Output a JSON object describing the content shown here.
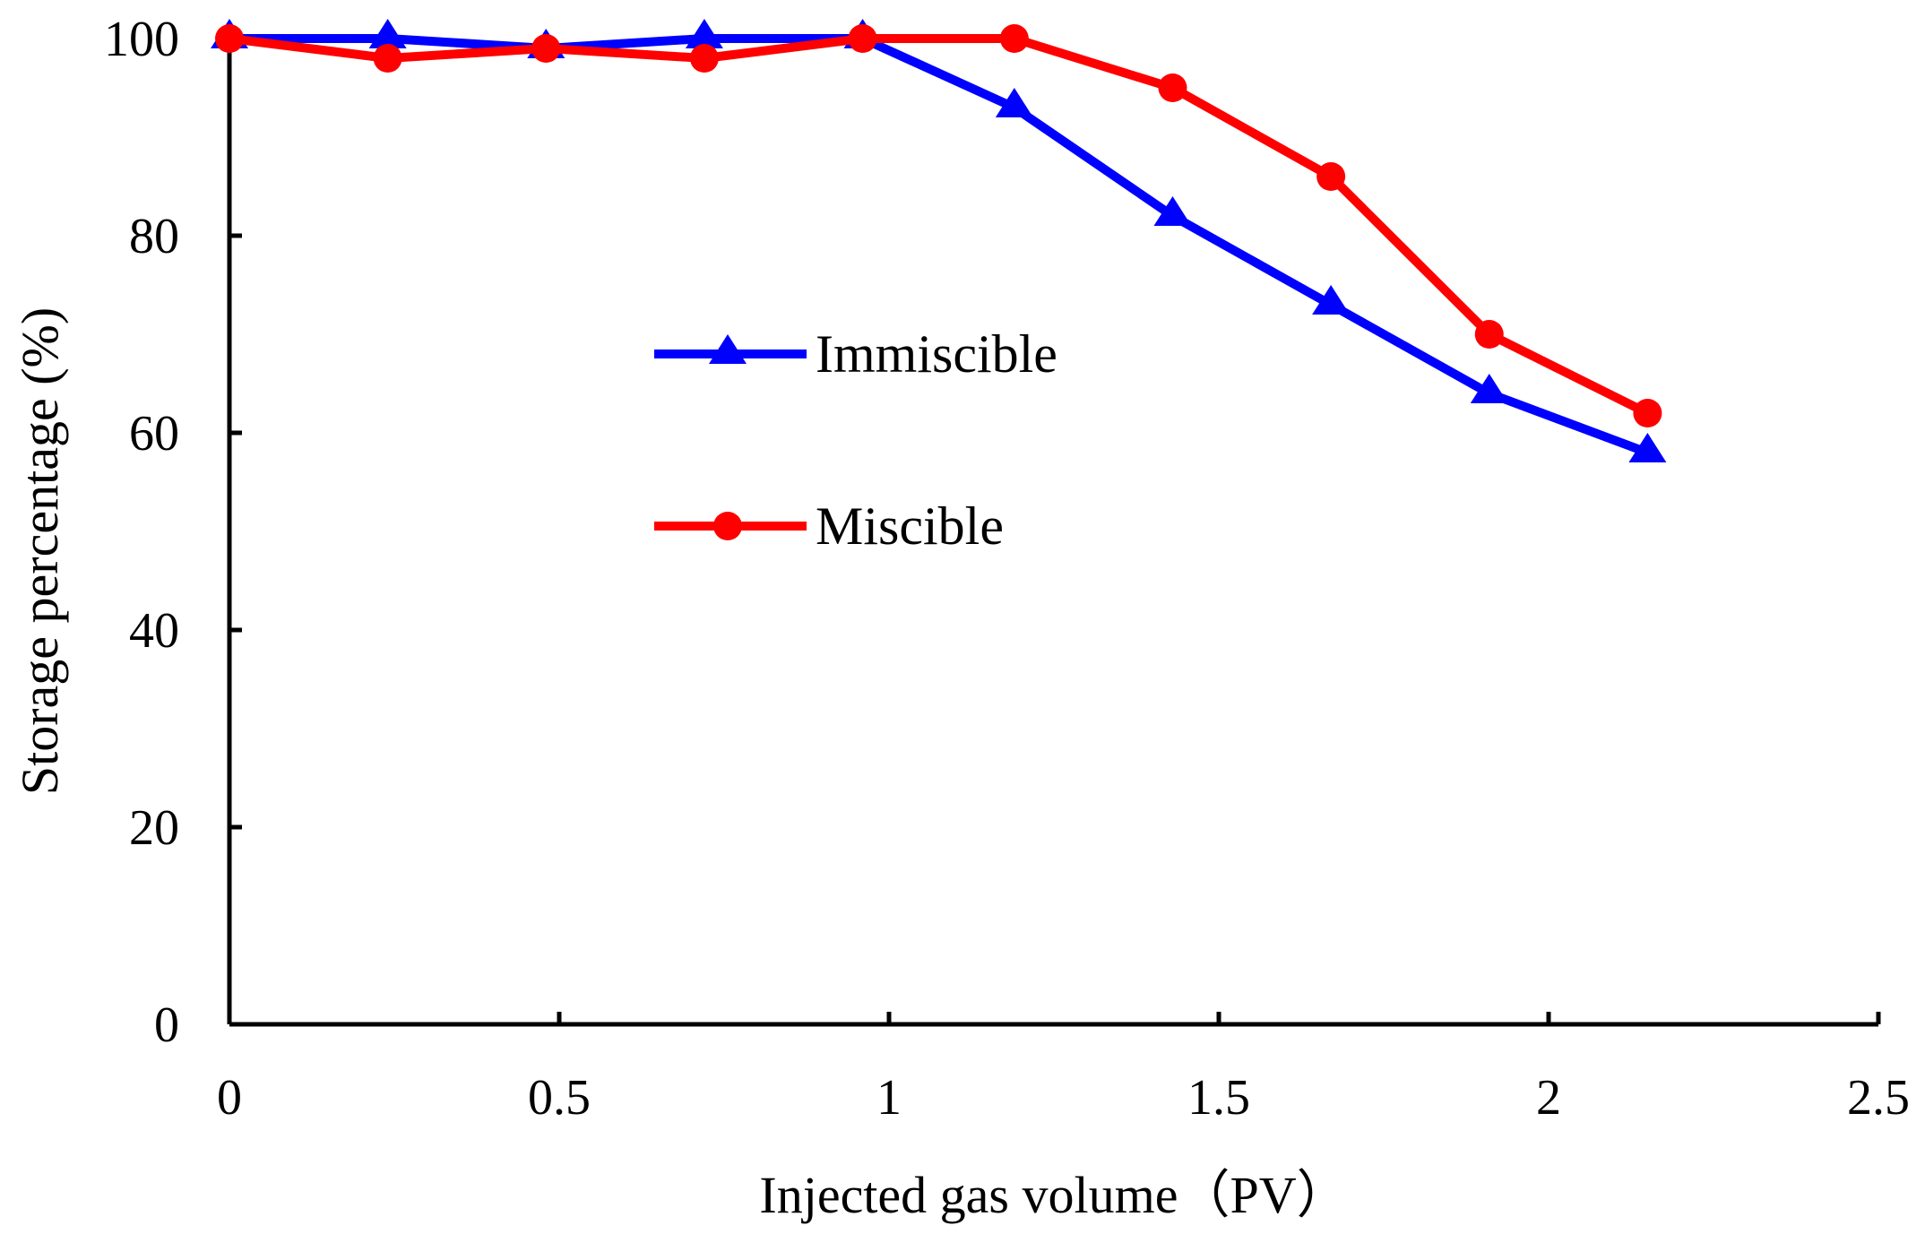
{
  "chart_data": {
    "type": "line",
    "xlabel": "Injected gas volume（PV）",
    "ylabel": "Storage percentage (%)",
    "xlim": [
      0,
      2.5
    ],
    "ylim": [
      0,
      100
    ],
    "xticks": [
      "0",
      "0.5",
      "1",
      "1.5",
      "2",
      "2.5"
    ],
    "yticks": [
      "0",
      "20",
      "40",
      "60",
      "80",
      "100"
    ],
    "grid": false,
    "legend_position": "center-left",
    "series": [
      {
        "name": "Immiscible",
        "color": "#0000ff",
        "marker": "triangle",
        "x": [
          0,
          0.24,
          0.48,
          0.72,
          0.96,
          1.19,
          1.43,
          1.67,
          1.91,
          2.15
        ],
        "y": [
          100,
          100,
          99,
          100,
          100,
          93,
          82,
          73,
          64,
          58
        ]
      },
      {
        "name": "Miscible",
        "color": "#ff0000",
        "marker": "circle",
        "x": [
          0,
          0.24,
          0.48,
          0.72,
          0.96,
          1.19,
          1.43,
          1.67,
          1.91,
          2.15
        ],
        "y": [
          100,
          98,
          99,
          98,
          100,
          100,
          95,
          86,
          70,
          62
        ]
      }
    ]
  }
}
